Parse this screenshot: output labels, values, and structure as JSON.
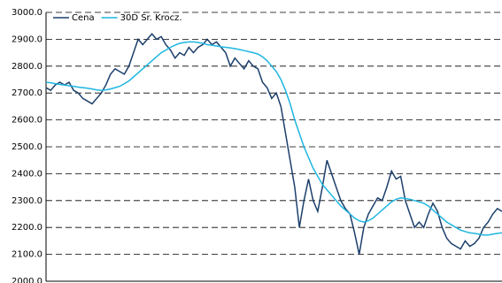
{
  "chart_data": {
    "type": "line",
    "categories": [
      null,
      null,
      null,
      null,
      null,
      null,
      null,
      null,
      null,
      null,
      null,
      null,
      null,
      null,
      null,
      null,
      null,
      null,
      null,
      null,
      null,
      null,
      null,
      null,
      null,
      null,
      null,
      null,
      null,
      null,
      null,
      null,
      null,
      null,
      null,
      null,
      null,
      null,
      null,
      null,
      null,
      null,
      null,
      null,
      null,
      null,
      null,
      null,
      null,
      null,
      null,
      null,
      null,
      null,
      null,
      null,
      null,
      null,
      null,
      null,
      null,
      null,
      null,
      null,
      null,
      null,
      null,
      null,
      null,
      null,
      null,
      null,
      null,
      null,
      null,
      null,
      null,
      null,
      null,
      null,
      null,
      null,
      null,
      null,
      null,
      null,
      null,
      null,
      null,
      null,
      null,
      null,
      null,
      null,
      null,
      null,
      null,
      null,
      null,
      null
    ],
    "series": [
      {
        "name": "Cena",
        "color": "#1b3f6b",
        "values": [
          2720,
          2710,
          2730,
          2740,
          2730,
          2740,
          2710,
          2700,
          2680,
          2670,
          2660,
          2680,
          2700,
          2730,
          2770,
          2790,
          2780,
          2770,
          2800,
          2850,
          2900,
          2880,
          2900,
          2920,
          2900,
          2910,
          2880,
          2860,
          2830,
          2850,
          2840,
          2870,
          2850,
          2870,
          2880,
          2900,
          2880,
          2890,
          2870,
          2850,
          2800,
          2830,
          2810,
          2790,
          2820,
          2800,
          2790,
          2740,
          2720,
          2680,
          2700,
          2650,
          2550,
          2450,
          2350,
          2200,
          2300,
          2380,
          2300,
          2260,
          2350,
          2450,
          2400,
          2350,
          2300,
          2270,
          2250,
          2180,
          2100,
          2200,
          2250,
          2280,
          2310,
          2300,
          2350,
          2410,
          2380,
          2390,
          2300,
          2250,
          2200,
          2220,
          2200,
          2250,
          2290,
          2260,
          2200,
          2160,
          2140,
          2130,
          2120,
          2150,
          2130,
          2140,
          2160,
          2200,
          2220,
          2250,
          2270,
          2260
        ]
      },
      {
        "name": "30D Śr. Krocz.",
        "color": "#1fb6e0",
        "values": [
          2740,
          2738,
          2735,
          2732,
          2730,
          2727,
          2725,
          2722,
          2720,
          2718,
          2715,
          2712,
          2710,
          2712,
          2715,
          2720,
          2725,
          2735,
          2745,
          2760,
          2775,
          2790,
          2805,
          2820,
          2835,
          2850,
          2860,
          2870,
          2878,
          2885,
          2888,
          2890,
          2890,
          2888,
          2885,
          2880,
          2878,
          2875,
          2872,
          2870,
          2868,
          2865,
          2862,
          2858,
          2854,
          2850,
          2845,
          2835,
          2820,
          2800,
          2780,
          2750,
          2710,
          2660,
          2600,
          2550,
          2500,
          2460,
          2420,
          2390,
          2360,
          2340,
          2320,
          2300,
          2280,
          2265,
          2250,
          2235,
          2225,
          2220,
          2225,
          2235,
          2250,
          2265,
          2280,
          2295,
          2305,
          2310,
          2308,
          2305,
          2300,
          2295,
          2290,
          2280,
          2265,
          2250,
          2235,
          2220,
          2210,
          2200,
          2190,
          2185,
          2180,
          2178,
          2175,
          2172,
          2172,
          2175,
          2178,
          2180
        ]
      }
    ],
    "ylim": [
      2000,
      3000
    ],
    "yticks": [
      {
        "value": 2000,
        "label": "2000.0"
      },
      {
        "value": 2100,
        "label": "2100.0"
      },
      {
        "value": 2200,
        "label": "2200.0"
      },
      {
        "value": 2300,
        "label": "2300.0"
      },
      {
        "value": 2400,
        "label": "2400.0"
      },
      {
        "value": 2500,
        "label": "2500.0"
      },
      {
        "value": 2600,
        "label": "2600.0"
      },
      {
        "value": 2700,
        "label": "2700.0"
      },
      {
        "value": 2800,
        "label": "2800.0"
      },
      {
        "value": 2900,
        "label": "2900.0"
      },
      {
        "value": 3000,
        "label": "3000.0"
      }
    ],
    "grid": true,
    "legend": "top-left"
  }
}
